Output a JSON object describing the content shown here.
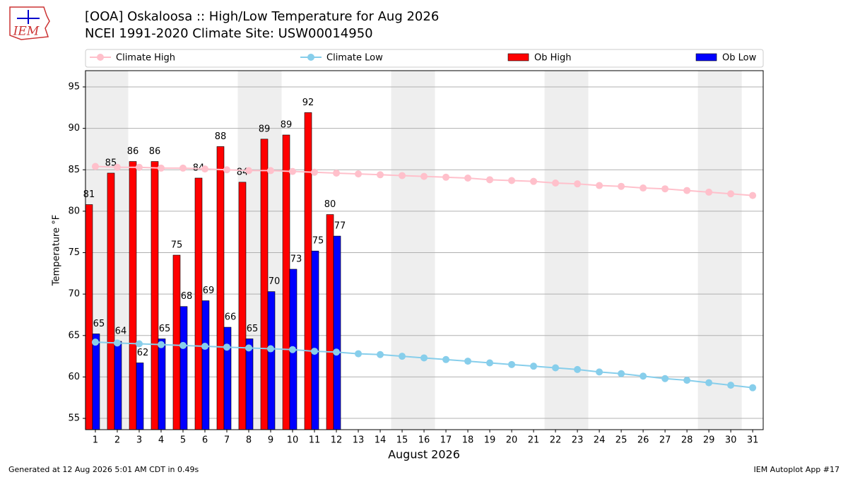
{
  "logo_text": "IEM",
  "chart_data": {
    "type": "bar",
    "title": "[OOA] Oskaloosa :: High/Low Temperature for Aug 2026",
    "subtitle": "NCEI 1991-2020 Climate Site: USW00014950",
    "xlabel": "August 2026",
    "ylabel": "Temperature °F",
    "footer_left": "Generated at 12 Aug 2026 5:01 AM CDT in 0.49s",
    "footer_right": "IEM Autoplot App #17",
    "x": [
      1,
      2,
      3,
      4,
      5,
      6,
      7,
      8,
      9,
      10,
      11,
      12,
      13,
      14,
      15,
      16,
      17,
      18,
      19,
      20,
      21,
      22,
      23,
      24,
      25,
      26,
      27,
      28,
      29,
      30,
      31
    ],
    "xlim": [
      0.55,
      31.48
    ],
    "ylim": [
      53.64,
      96.96
    ],
    "yticks": [
      55,
      60,
      65,
      70,
      75,
      80,
      85,
      90,
      95
    ],
    "grid": true,
    "series": [
      {
        "name": "Climate High",
        "kind": "line",
        "color": "#ffc0cb",
        "values": [
          85.4,
          85.3,
          85.3,
          85.2,
          85.2,
          85.1,
          85.0,
          84.9,
          84.9,
          84.8,
          84.7,
          84.6,
          84.5,
          84.4,
          84.3,
          84.2,
          84.1,
          84.0,
          83.8,
          83.7,
          83.6,
          83.4,
          83.3,
          83.1,
          83.0,
          82.8,
          82.7,
          82.5,
          82.3,
          82.1,
          81.9
        ]
      },
      {
        "name": "Climate Low",
        "kind": "line",
        "color": "#87ceeb",
        "values": [
          64.2,
          64.1,
          64.0,
          63.9,
          63.8,
          63.7,
          63.6,
          63.5,
          63.4,
          63.3,
          63.1,
          63.0,
          62.8,
          62.7,
          62.5,
          62.3,
          62.1,
          61.9,
          61.7,
          61.5,
          61.3,
          61.1,
          60.9,
          60.6,
          60.4,
          60.1,
          59.8,
          59.6,
          59.3,
          59.0,
          58.7
        ]
      },
      {
        "name": "Ob High",
        "kind": "bar",
        "color": "#ff0000",
        "values": [
          80.8,
          84.6,
          86.0,
          86.0,
          74.7,
          84.0,
          87.8,
          83.5,
          88.7,
          89.2,
          91.9,
          79.6,
          null,
          null,
          null,
          null,
          null,
          null,
          null,
          null,
          null,
          null,
          null,
          null,
          null,
          null,
          null,
          null,
          null,
          null,
          null
        ],
        "value_labels": [
          "81",
          "85",
          "86",
          "86",
          "75",
          "84",
          "88",
          "84",
          "89",
          "89",
          "92",
          "80",
          null,
          null,
          null,
          null,
          null,
          null,
          null,
          null,
          null,
          null,
          null,
          null,
          null,
          null,
          null,
          null,
          null,
          null,
          null
        ]
      },
      {
        "name": "Ob Low",
        "kind": "bar",
        "color": "#0000ff",
        "values": [
          65.2,
          64.3,
          61.7,
          64.6,
          68.5,
          69.2,
          66.0,
          64.6,
          70.3,
          73.0,
          75.2,
          77.0,
          null,
          null,
          null,
          null,
          null,
          null,
          null,
          null,
          null,
          null,
          null,
          null,
          null,
          null,
          null,
          null,
          null,
          null,
          null
        ],
        "value_labels": [
          "65",
          "64",
          "62",
          "65",
          "68",
          "69",
          "66",
          "65",
          "70",
          "73",
          "75",
          "77",
          null,
          null,
          null,
          null,
          null,
          null,
          null,
          null,
          null,
          null,
          null,
          null,
          null,
          null,
          null,
          null,
          null,
          null,
          null
        ]
      }
    ]
  }
}
